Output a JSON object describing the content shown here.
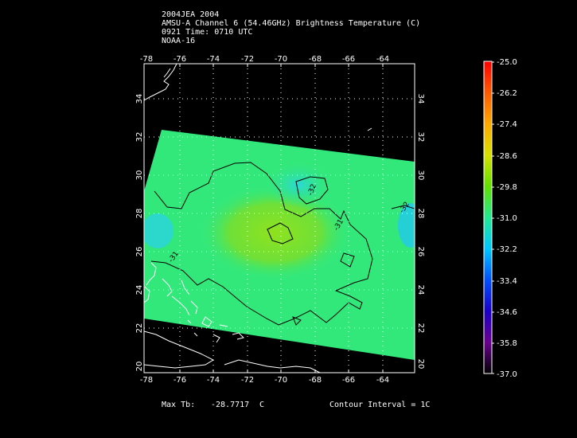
{
  "header": {
    "line1": "2004JEA 2004",
    "line2": "AMSU-A Channel 6 (54.46GHz) Brightness Temperature (C)",
    "line3": "0921 Time: 0710 UTC",
    "line4": "NOAA-16"
  },
  "map": {
    "lon_range": [
      -78,
      -62
    ],
    "lat_range": [
      20,
      36
    ],
    "lon_ticks": [
      "-78",
      "-76",
      "-74",
      "-72",
      "-70",
      "-68",
      "-66",
      "-64"
    ],
    "lat_ticks": [
      "20",
      "22",
      "24",
      "26",
      "28",
      "30",
      "32",
      "34"
    ],
    "contour_labels": [
      "-32",
      "-31",
      "-31",
      "-32"
    ],
    "field_color": "#33e87a",
    "coastline_color": "#ffffff"
  },
  "colorbar": {
    "min": -37.0,
    "max": -25.0,
    "ticks": [
      "-25.0",
      "-26.2",
      "-27.4",
      "-28.6",
      "-29.8",
      "-31.0",
      "-32.2",
      "-33.4",
      "-34.6",
      "-35.8",
      "-37.0"
    ]
  },
  "footer": {
    "max_label": "Max Tb:",
    "max_value": "-28.7717",
    "max_unit": "C",
    "contour_interval": "Contour Interval = 1C"
  }
}
